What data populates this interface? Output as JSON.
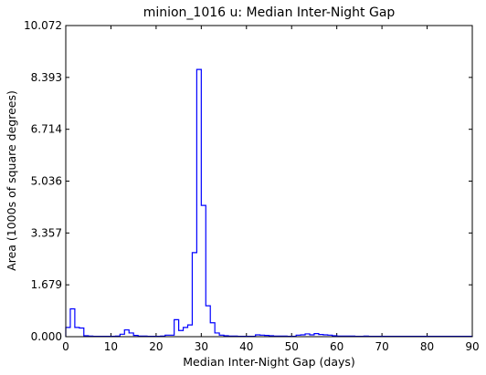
{
  "chart_data": {
    "type": "line",
    "style": "step",
    "title": "minion_1016  u: Median Inter-Night Gap",
    "xlabel": "Median Inter-Night Gap (days)",
    "ylabel": "Area (1000s of square degrees)",
    "xlim": [
      0,
      90
    ],
    "ylim": [
      0,
      10.072
    ],
    "xticks": [
      0,
      10,
      20,
      30,
      40,
      50,
      60,
      70,
      80,
      90
    ],
    "xtick_labels": [
      "0",
      "10",
      "20",
      "30",
      "40",
      "50",
      "60",
      "70",
      "80",
      "90"
    ],
    "yticks": [
      0,
      1.679,
      3.357,
      5.036,
      6.714,
      8.393,
      10.072
    ],
    "ytick_labels": [
      "0.000",
      "1.679",
      "3.357",
      "5.036",
      "6.714",
      "8.393",
      "10.072"
    ],
    "grid": false,
    "line_color": "#0000ff",
    "series": [
      {
        "bin_width": 1,
        "bin_start": 0,
        "values": [
          0.3,
          0.9,
          0.3,
          0.28,
          0.03,
          0.02,
          0.01,
          0.01,
          0.01,
          0.01,
          0.01,
          0.02,
          0.08,
          0.22,
          0.12,
          0.04,
          0.02,
          0.02,
          0.01,
          0.01,
          0.01,
          0.02,
          0.05,
          0.05,
          0.55,
          0.2,
          0.3,
          0.38,
          2.72,
          8.65,
          4.25,
          1.0,
          0.45,
          0.12,
          0.05,
          0.03,
          0.02,
          0.02,
          0.01,
          0.01,
          0.01,
          0.01,
          0.06,
          0.05,
          0.04,
          0.03,
          0.02,
          0.02,
          0.02,
          0.01,
          0.01,
          0.05,
          0.06,
          0.09,
          0.06,
          0.1,
          0.07,
          0.06,
          0.05,
          0.03,
          0.02,
          0.02,
          0.02,
          0.02,
          0.01,
          0.01,
          0.02,
          0.01,
          0.01,
          0.01,
          0.01,
          0.01,
          0.01,
          0.01,
          0.01,
          0.01,
          0.01,
          0.01,
          0.01,
          0.01,
          0.01,
          0.01,
          0.01,
          0.01,
          0.01,
          0.01,
          0.01,
          0.01,
          0.01,
          0.01
        ]
      }
    ]
  }
}
